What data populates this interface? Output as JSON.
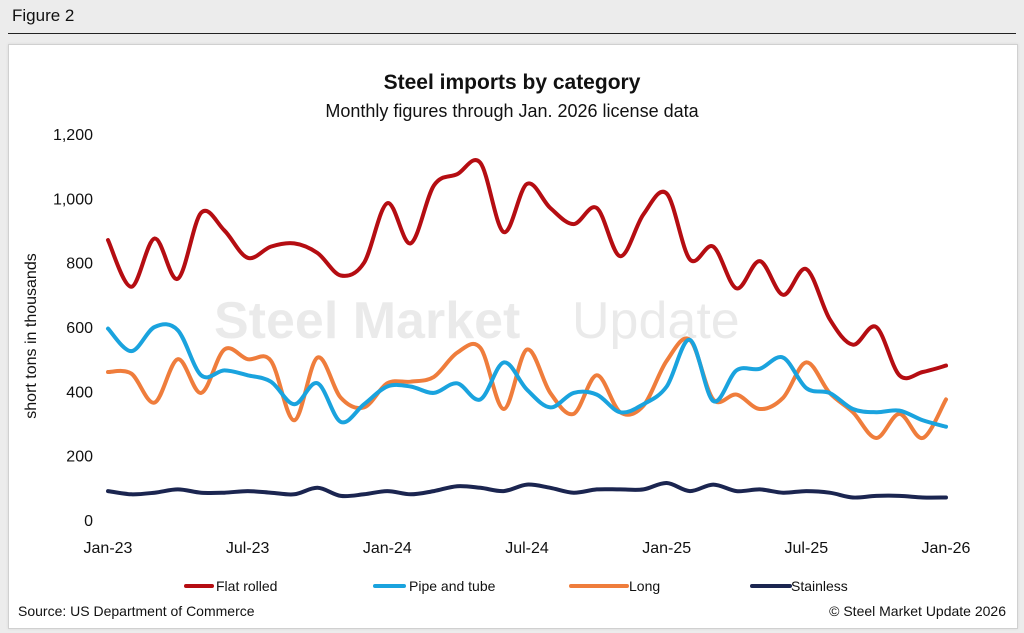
{
  "figure_label": "Figure 2",
  "source": "Source: US Department of Commerce",
  "copyright": "© Steel Market Update 2026",
  "watermark": {
    "bold": "Steel Market",
    "light": "Update"
  },
  "colors": {
    "flat_rolled": "#b50d12",
    "pipe_and_tube": "#1aa3de",
    "long": "#ef7d3c",
    "stainless": "#1b2550"
  },
  "chart_data": {
    "type": "line",
    "title": "Steel imports by category",
    "subtitle": "Monthly figures through Jan. 2026 license data",
    "ylabel": "short tons in thousands",
    "ylim": [
      0,
      1200
    ],
    "yticks": [
      {
        "value": 0,
        "label": "0"
      },
      {
        "value": 200,
        "label": "200"
      },
      {
        "value": 400,
        "label": "400"
      },
      {
        "value": 600,
        "label": "600"
      },
      {
        "value": 800,
        "label": "800"
      },
      {
        "value": 1000,
        "label": "1,000"
      },
      {
        "value": 1200,
        "label": "1,200"
      }
    ],
    "xtick_labels": [
      {
        "index": 0,
        "label": "Jan-23"
      },
      {
        "index": 6,
        "label": "Jul-23"
      },
      {
        "index": 12,
        "label": "Jan-24"
      },
      {
        "index": 18,
        "label": "Jul-24"
      },
      {
        "index": 24,
        "label": "Jan-25"
      },
      {
        "index": 30,
        "label": "Jul-25"
      },
      {
        "index": 36,
        "label": "Jan-26"
      }
    ],
    "x": [
      "Jan-23",
      "Feb-23",
      "Mar-23",
      "Apr-23",
      "May-23",
      "Jun-23",
      "Jul-23",
      "Aug-23",
      "Sep-23",
      "Oct-23",
      "Nov-23",
      "Dec-23",
      "Jan-24",
      "Feb-24",
      "Mar-24",
      "Apr-24",
      "May-24",
      "Jun-24",
      "Jul-24",
      "Aug-24",
      "Sep-24",
      "Oct-24",
      "Nov-24",
      "Dec-24",
      "Jan-25",
      "Feb-25",
      "Mar-25",
      "Apr-25",
      "May-25",
      "Jun-25",
      "Jul-25",
      "Aug-25",
      "Sep-25",
      "Oct-25",
      "Nov-25",
      "Dec-25",
      "Jan-26"
    ],
    "series": [
      {
        "name": "Flat rolled",
        "color_key": "flat_rolled",
        "values": [
          870,
          725,
          875,
          750,
          955,
          900,
          815,
          850,
          860,
          830,
          760,
          800,
          985,
          860,
          1040,
          1075,
          1110,
          895,
          1045,
          970,
          920,
          970,
          820,
          950,
          1015,
          810,
          850,
          720,
          805,
          700,
          780,
          625,
          545,
          600,
          450,
          460,
          480
        ]
      },
      {
        "name": "Pipe and tube",
        "color_key": "pipe_and_tube",
        "values": [
          595,
          525,
          600,
          590,
          450,
          465,
          450,
          430,
          360,
          425,
          305,
          360,
          415,
          415,
          395,
          425,
          375,
          490,
          405,
          350,
          395,
          390,
          335,
          360,
          415,
          560,
          370,
          465,
          470,
          505,
          410,
          395,
          345,
          335,
          340,
          310,
          290
        ]
      },
      {
        "name": "Long",
        "color_key": "long",
        "values": [
          460,
          455,
          365,
          500,
          395,
          530,
          500,
          495,
          310,
          505,
          380,
          350,
          425,
          430,
          445,
          520,
          535,
          345,
          530,
          395,
          330,
          450,
          335,
          355,
          495,
          560,
          375,
          390,
          345,
          380,
          490,
          395,
          335,
          255,
          330,
          255,
          375
        ]
      },
      {
        "name": "Stainless",
        "color_key": "stainless",
        "values": [
          90,
          80,
          85,
          95,
          85,
          85,
          90,
          85,
          80,
          100,
          75,
          80,
          90,
          80,
          90,
          105,
          100,
          90,
          110,
          100,
          85,
          95,
          95,
          95,
          115,
          90,
          110,
          90,
          95,
          85,
          90,
          85,
          70,
          75,
          75,
          70,
          70
        ]
      }
    ],
    "legend_position": "bottom",
    "grid": false
  }
}
